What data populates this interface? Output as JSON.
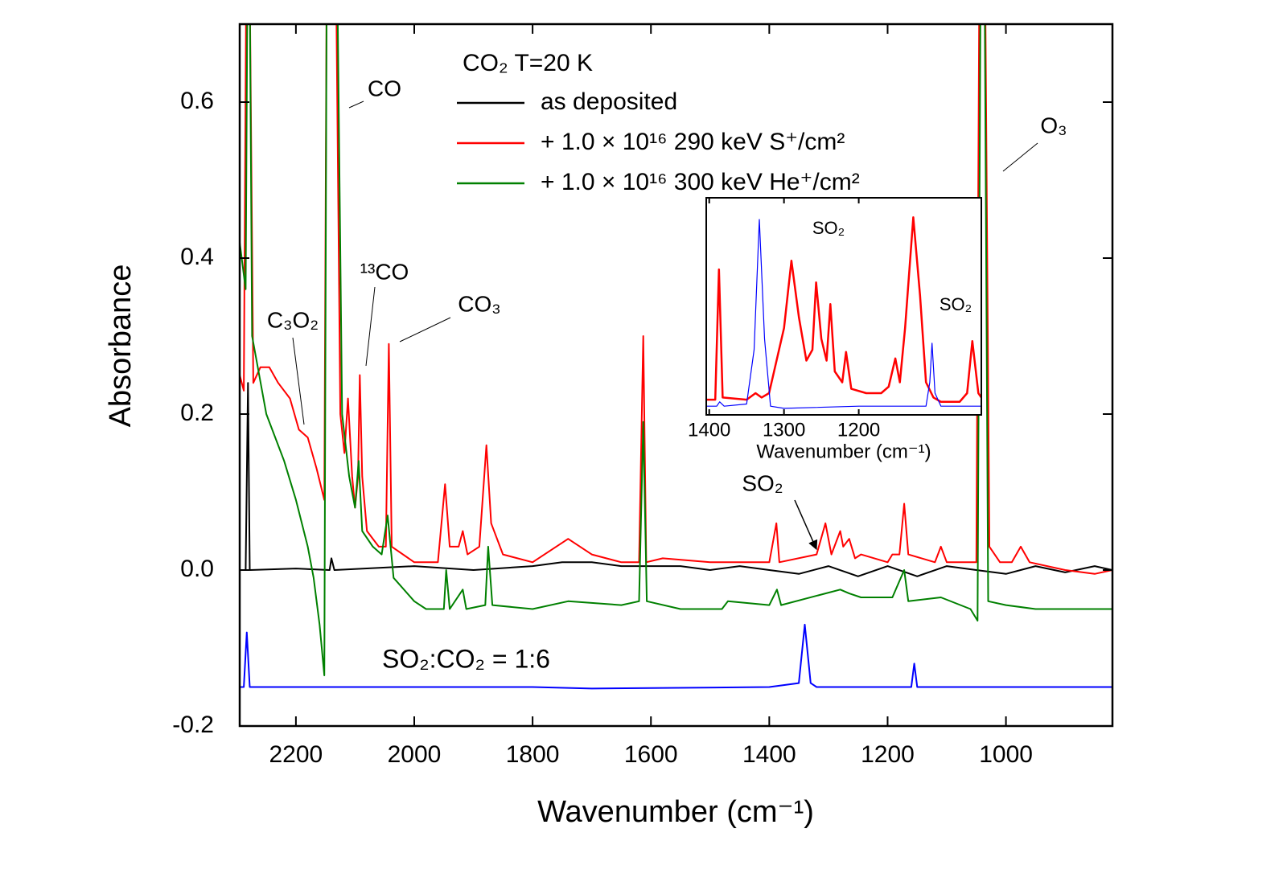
{
  "chart_data": [
    {
      "type": "line",
      "xlabel": "Wavenumber (cm⁻¹)",
      "ylabel": "Absorbance",
      "xlim": [
        2295,
        820
      ],
      "ylim": [
        -0.2,
        0.7
      ],
      "xticks": [
        2200,
        2000,
        1800,
        1600,
        1400,
        1200,
        1000
      ],
      "yticks": [
        -0.2,
        {
          "value": 0,
          "label": "0.0"
        },
        0.2,
        0.4,
        0.6
      ],
      "legend_title": "CO₂  T=20 K",
      "series": [
        {
          "name": "as deposited",
          "color": "#000000",
          "x": [
            2295,
            2285,
            2281,
            2278,
            2200,
            2143,
            2140,
            2135,
            2000,
            1900,
            1800,
            1750,
            1700,
            1650,
            1610,
            1600,
            1550,
            1500,
            1450,
            1400,
            1350,
            1300,
            1250,
            1200,
            1150,
            1100,
            1050,
            1000,
            950,
            900,
            850,
            820
          ],
          "values": [
            0,
            0,
            0.24,
            0,
            0.002,
            0,
            0.015,
            0,
            0.005,
            0,
            0.005,
            0.01,
            0.01,
            0.005,
            0.005,
            0.005,
            0.005,
            0,
            0.005,
            0,
            -0.005,
            0.005,
            -0.008,
            0.005,
            -0.008,
            0.005,
            0,
            -0.005,
            0.005,
            -0.003,
            0.005,
            0
          ]
        },
        {
          "name": "+ 1.0 × 10¹⁶ 290 keV S⁺/cm²",
          "color": "#ff0000",
          "x": [
            2295,
            2288,
            2284,
            2278,
            2272,
            2260,
            2245,
            2230,
            2210,
            2195,
            2180,
            2165,
            2152,
            2148,
            2132,
            2125,
            2118,
            2112,
            2105,
            2100,
            2095,
            2092,
            2088,
            2080,
            2060,
            2048,
            2043,
            2038,
            2000,
            1960,
            1948,
            1940,
            1925,
            1918,
            1910,
            1890,
            1878,
            1870,
            1850,
            1800,
            1740,
            1700,
            1650,
            1620,
            1613,
            1608,
            1580,
            1500,
            1450,
            1400,
            1388,
            1383,
            1320,
            1305,
            1295,
            1280,
            1275,
            1265,
            1255,
            1245,
            1200,
            1192,
            1180,
            1172,
            1165,
            1120,
            1110,
            1100,
            1060,
            1050,
            1045,
            1035,
            1028,
            1010,
            990,
            975,
            960,
            900,
            850,
            820
          ],
          "values": [
            0.25,
            0.23,
            0.75,
            0.75,
            0.24,
            0.26,
            0.26,
            0.24,
            0.22,
            0.18,
            0.17,
            0.13,
            0.09,
            0.75,
            0.75,
            0.2,
            0.15,
            0.22,
            0.12,
            0.08,
            0.12,
            0.25,
            0.12,
            0.05,
            0.03,
            0.03,
            0.29,
            0.03,
            0.01,
            0.01,
            0.11,
            0.03,
            0.03,
            0.05,
            0.02,
            0.03,
            0.16,
            0.06,
            0.02,
            0.01,
            0.04,
            0.02,
            0.01,
            0.01,
            0.3,
            0.01,
            0.015,
            0.01,
            0.01,
            0.01,
            0.06,
            0.01,
            0.02,
            0.06,
            0.02,
            0.05,
            0.03,
            0.04,
            0.015,
            0.02,
            0.01,
            0.02,
            0.02,
            0.085,
            0.02,
            0.01,
            0.03,
            0.01,
            0.01,
            0.01,
            0.75,
            0.75,
            0.03,
            0.01,
            0.01,
            0.03,
            0.01,
            0,
            -0.005,
            0
          ]
        },
        {
          "name": "+ 1.0 × 10¹⁶ 300 keV He⁺/cm²",
          "color": "#008000",
          "x": [
            2295,
            2285,
            2282,
            2278,
            2274,
            2250,
            2220,
            2200,
            2180,
            2170,
            2160,
            2152,
            2148,
            2130,
            2122,
            2110,
            2100,
            2094,
            2088,
            2070,
            2055,
            2045,
            2035,
            2000,
            1980,
            1950,
            1946,
            1940,
            1918,
            1912,
            1880,
            1875,
            1868,
            1800,
            1740,
            1650,
            1620,
            1613,
            1607,
            1550,
            1480,
            1470,
            1400,
            1387,
            1380,
            1305,
            1280,
            1265,
            1245,
            1192,
            1172,
            1165,
            1110,
            1060,
            1048,
            1043,
            1036,
            1030,
            1000,
            950,
            900,
            820
          ],
          "values": [
            0.42,
            0.36,
            0.75,
            0.75,
            0.3,
            0.2,
            0.14,
            0.09,
            0.03,
            -0.01,
            -0.07,
            -0.135,
            0.75,
            0.75,
            0.2,
            0.12,
            0.08,
            0.14,
            0.05,
            0.03,
            0.02,
            0.07,
            -0.01,
            -0.04,
            -0.05,
            -0.05,
            0,
            -0.05,
            -0.025,
            -0.05,
            -0.045,
            0.03,
            -0.045,
            -0.05,
            -0.04,
            -0.045,
            -0.04,
            0.19,
            -0.04,
            -0.05,
            -0.05,
            -0.04,
            -0.045,
            -0.025,
            -0.045,
            -0.03,
            -0.025,
            -0.03,
            -0.035,
            -0.035,
            0,
            -0.04,
            -0.035,
            -0.05,
            -0.065,
            0.75,
            0.75,
            -0.04,
            -0.045,
            -0.05,
            -0.05,
            -0.05
          ]
        },
        {
          "name": "SO₂:CO₂ = 1:6",
          "color": "#0000ff",
          "label_in_plot": true,
          "x": [
            2295,
            2288,
            2283,
            2278,
            2200,
            1800,
            1700,
            1400,
            1350,
            1340,
            1330,
            1320,
            1160,
            1155,
            1150,
            820
          ],
          "values": [
            -0.15,
            -0.15,
            -0.08,
            -0.15,
            -0.15,
            -0.15,
            -0.152,
            -0.15,
            -0.145,
            -0.07,
            -0.145,
            -0.15,
            -0.15,
            -0.12,
            -0.15,
            -0.15
          ]
        }
      ],
      "annotations": [
        "CO",
        "¹³CO",
        "CO₃",
        "C₃O₂",
        "O₃",
        "SO₂"
      ]
    },
    {
      "type": "line",
      "xlabel": "Wavenumber (cm⁻¹)",
      "xlim": [
        1404,
        1036
      ],
      "ylim": [
        0,
        1
      ],
      "xticks": [
        1400,
        1300,
        1200
      ],
      "series": [
        {
          "color": "#ff0000",
          "x": [
            1404,
            1392,
            1387,
            1382,
            1350,
            1338,
            1330,
            1320,
            1300,
            1290,
            1280,
            1270,
            1262,
            1257,
            1250,
            1243,
            1238,
            1232,
            1222,
            1217,
            1210,
            1190,
            1170,
            1160,
            1151,
            1145,
            1138,
            1127,
            1118,
            1110,
            1100,
            1090,
            1065,
            1055,
            1048,
            1040,
            1036
          ],
          "values": [
            0.07,
            0.07,
            0.67,
            0.08,
            0.07,
            0.1,
            0.08,
            0.1,
            0.4,
            0.71,
            0.45,
            0.25,
            0.3,
            0.61,
            0.35,
            0.25,
            0.51,
            0.2,
            0.15,
            0.29,
            0.12,
            0.1,
            0.1,
            0.13,
            0.26,
            0.15,
            0.4,
            0.91,
            0.55,
            0.15,
            0.08,
            0.06,
            0.06,
            0.1,
            0.34,
            0.1,
            0.08
          ]
        },
        {
          "color": "#0000ff",
          "x": [
            1404,
            1390,
            1386,
            1380,
            1350,
            1340,
            1333,
            1326,
            1318,
            1300,
            1200,
            1110,
            1105,
            1102,
            1098,
            1090,
            1036
          ],
          "values": [
            0.04,
            0.04,
            0.06,
            0.04,
            0.05,
            0.3,
            0.9,
            0.35,
            0.04,
            0.03,
            0.04,
            0.04,
            0.15,
            0.33,
            0.1,
            0.04,
            0.04
          ]
        }
      ],
      "annotations": [
        "SO₂",
        "SO₂"
      ]
    }
  ]
}
